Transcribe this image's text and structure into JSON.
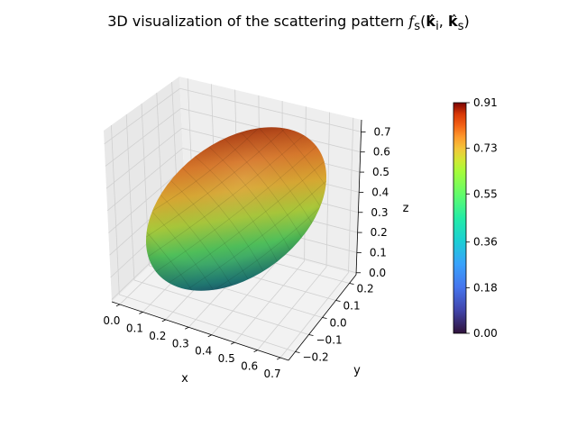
{
  "chart_data": {
    "type": "surface3d",
    "title_text": "3D visualization of the scattering pattern",
    "title_math": {
      "f": "f",
      "sub_f": "s",
      "k_i": "k",
      "sub_i": "i",
      "k_s": "k",
      "sub_s": "s"
    },
    "xlabel": "x",
    "ylabel": "y",
    "zlabel": "z",
    "x_ticks": [
      "0.0",
      "0.1",
      "0.2",
      "0.3",
      "0.4",
      "0.5",
      "0.6",
      "0.7"
    ],
    "y_ticks": [
      "−0.2",
      "−0.1",
      "0.0",
      "0.1",
      "0.2"
    ],
    "z_ticks": [
      "0.0",
      "0.1",
      "0.2",
      "0.3",
      "0.4",
      "0.5",
      "0.6",
      "0.7"
    ],
    "colorbar_ticks": [
      "0.00",
      "0.18",
      "0.36",
      "0.55",
      "0.73",
      "0.91"
    ],
    "colorbar_range": [
      0,
      0.91
    ],
    "colormap": "turbo",
    "surface": {
      "center": [
        0.35,
        0,
        0.35
      ],
      "semi_axis_major": 0.5,
      "semi_axis_minor": 0.18,
      "axis_direction": [
        1,
        0,
        1
      ]
    },
    "grid": true
  }
}
